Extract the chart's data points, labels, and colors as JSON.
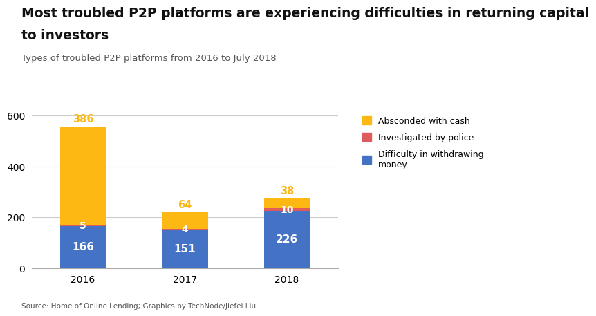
{
  "title_line1": "Most troubled P2P platforms are experiencing difficulties in returning capital",
  "title_line2": "to investors",
  "subtitle": "Types of troubled P2P platforms from 2016 to July 2018",
  "source": "Source: Home of Online Lending; Graphics by TechNode/Jiefei Liu",
  "categories": [
    "2016",
    "2017",
    "2018"
  ],
  "blue_values": [
    166,
    151,
    226
  ],
  "red_values": [
    5,
    4,
    10
  ],
  "orange_values": [
    386,
    64,
    38
  ],
  "blue_color": "#4472C4",
  "red_color": "#E05C5C",
  "orange_color": "#FDB813",
  "blue_label": "Difficulty in withdrawing\nmoney",
  "red_label": "Investigated by police",
  "orange_label": "Absconded with cash",
  "ylim": [
    0,
    620
  ],
  "yticks": [
    0,
    200,
    400,
    600
  ],
  "bar_width": 0.45,
  "bg_color": "#ffffff",
  "title_fontsize": 13.5,
  "subtitle_fontsize": 9.5,
  "value_fontsize_inner": 11,
  "value_fontsize_outer": 10.5
}
